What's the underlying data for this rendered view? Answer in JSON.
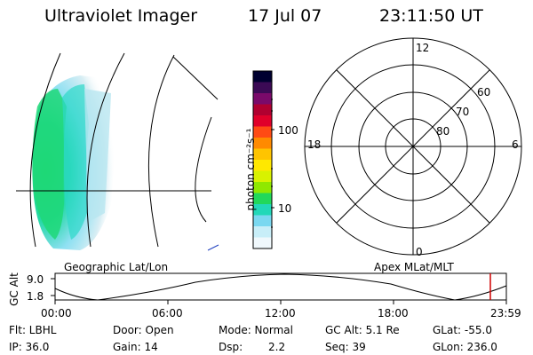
{
  "header": {
    "title": "Ultraviolet Imager",
    "date": "17 Jul 07",
    "time": "23:11:50 UT"
  },
  "colorbar": {
    "label": "photon cm⁻²s⁻¹",
    "ticks": [
      "100",
      "10"
    ],
    "colors": [
      "#000030",
      "#3b0a55",
      "#7a0a6a",
      "#b00030",
      "#e0002a",
      "#ff4a14",
      "#ff8a00",
      "#ffc400",
      "#ffe800",
      "#d8f200",
      "#8fe800",
      "#22d85a",
      "#22d8b8",
      "#7ad8f0",
      "#c8eef8",
      "#f0f8fc"
    ]
  },
  "polar": {
    "labels": [
      "12",
      "60",
      "70",
      "80",
      "18",
      "6",
      "0"
    ]
  },
  "panel_labels": {
    "geo": "Geographic Lat/Lon",
    "apex": "Apex MLat/MLT"
  },
  "altitude_strip": {
    "ylabel": "GC Alt",
    "ymax": "9.0",
    "ymin": "1.8",
    "times": [
      "00:00",
      "06:00",
      "12:00",
      "18:00",
      "23:59"
    ],
    "marker_color": "#d00000"
  },
  "info": {
    "filter_label": "Flt: LBHL",
    "ip_label": "IP: 36.0",
    "door_label": "Door: Open",
    "gain_label": "Gain: 14",
    "mode_label": "Mode: Normal",
    "dsp_label": "Dsp:",
    "dsp_value": "2.2",
    "gcalt_label": "GC Alt: 5.1 Re",
    "seq_label": "Seq: 39",
    "glat_label": "GLat: -55.0",
    "glon_label": "GLon: 236.0"
  }
}
